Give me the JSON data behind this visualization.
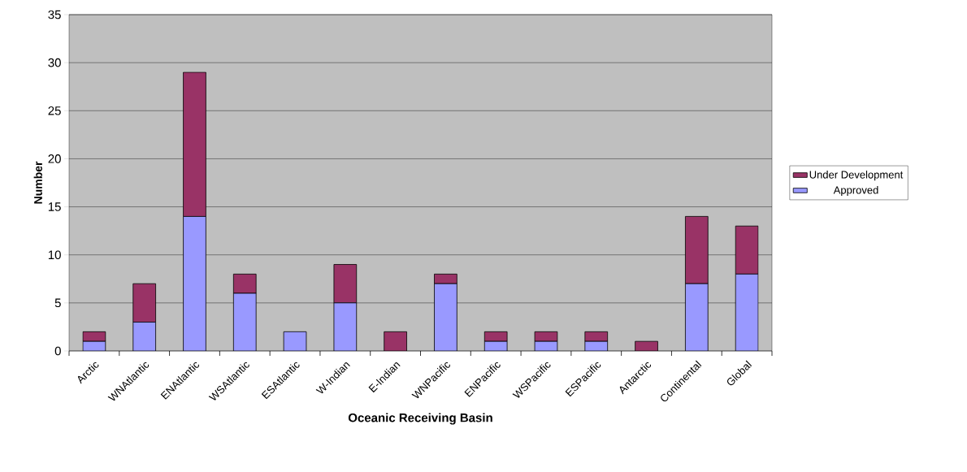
{
  "chart_data": {
    "type": "bar",
    "stacked": true,
    "xlabel": "Oceanic Receiving Basin",
    "ylabel": "Number",
    "categories": [
      "Arctic",
      "WNAtlantic",
      "ENAtlantic",
      "WSAtlantic",
      "ESAtlantic",
      "W-Indian",
      "E-Indian",
      "WNPacific",
      "ENPacific",
      "WSPacific",
      "ESPacific",
      "Antarctic",
      "Continental",
      "Global"
    ],
    "series": [
      {
        "name": "Approved",
        "color": "#9999ff",
        "values": [
          1,
          3,
          14,
          6,
          2,
          5,
          0,
          7,
          1,
          1,
          1,
          0,
          7,
          8
        ]
      },
      {
        "name": "Under Development",
        "color": "#993366",
        "values": [
          1,
          4,
          15,
          2,
          0,
          4,
          2,
          1,
          1,
          1,
          1,
          1,
          7,
          5
        ]
      }
    ],
    "ylim": [
      0,
      35
    ],
    "yticks": [
      0,
      5,
      10,
      15,
      20,
      25,
      30,
      35
    ],
    "grid": "y",
    "legend": "right"
  }
}
